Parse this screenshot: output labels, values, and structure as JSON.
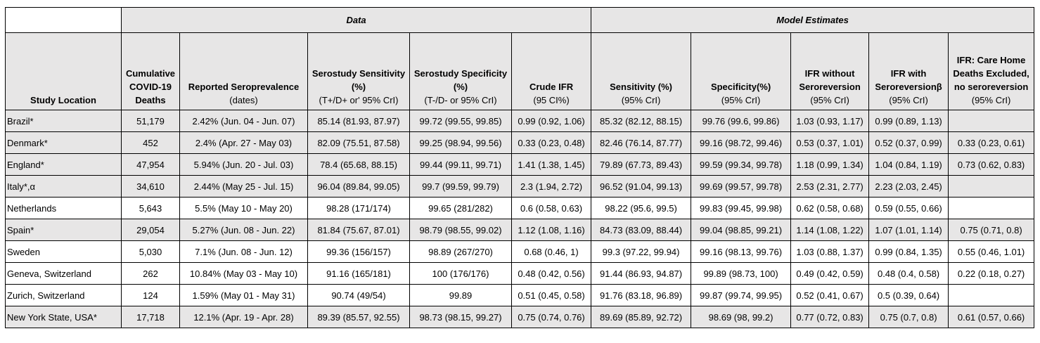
{
  "table": {
    "groups": [
      "Data",
      "Model Estimates"
    ],
    "columns": [
      {
        "bold": "Study Location",
        "normal": ""
      },
      {
        "bold": "Cumulative COVID-19 Deaths",
        "normal": ""
      },
      {
        "bold": "Reported Seroprevalence",
        "normal": "(dates)"
      },
      {
        "bold": "Serostudy Sensitivity (%)",
        "normal": "(T+/D+ or' 95% CrI)"
      },
      {
        "bold": "Serostudy Specificity (%)",
        "normal": "(T-/D- or 95% CrI)"
      },
      {
        "bold": "Crude IFR",
        "normal": "(95 CI%)"
      },
      {
        "bold": "Sensitivity (%)",
        "normal": "(95% CrI)"
      },
      {
        "bold": "Specificity(%)",
        "normal": "(95% CrI)"
      },
      {
        "bold": "IFR without Seroreversion",
        "normal": "(95% CrI)"
      },
      {
        "bold": "IFR with Seroreversionβ",
        "normal": "(95% CrI)"
      },
      {
        "bold": "IFR: Care Home Deaths Excluded, no seroreversion",
        "normal": "(95% CrI)"
      }
    ],
    "rows": [
      [
        "Brazil*",
        "51,179",
        "2.42% (Jun. 04 - Jun. 07)",
        "85.14 (81.93, 87.97)",
        "99.72 (99.55, 99.85)",
        "0.99 (0.92, 1.06)",
        "85.32 (82.12, 88.15)",
        "99.76 (99.6, 99.86)",
        "1.03 (0.93, 1.17)",
        "0.99 (0.89, 1.13)",
        ""
      ],
      [
        "Denmark*",
        "452",
        "2.4% (Apr. 27 - May 03)",
        "82.09 (75.51, 87.58)",
        "99.25 (98.94, 99.56)",
        "0.33 (0.23, 0.48)",
        "82.46 (76.14, 87.77)",
        "99.16 (98.72, 99.46)",
        "0.53 (0.37, 1.01)",
        "0.52 (0.37, 0.99)",
        "0.33 (0.23, 0.61)"
      ],
      [
        "England*",
        "47,954",
        "5.94% (Jun. 20 - Jul. 03)",
        "78.4 (65.68, 88.15)",
        "99.44 (99.11, 99.71)",
        "1.41 (1.38, 1.45)",
        "79.89 (67.73, 89.43)",
        "99.59 (99.34, 99.78)",
        "1.18 (0.99, 1.34)",
        "1.04 (0.84, 1.19)",
        "0.73 (0.62, 0.83)"
      ],
      [
        "Italy*,α",
        "34,610",
        "2.44% (May 25 - Jul. 15)",
        "96.04 (89.84, 99.05)",
        "99.7 (99.59, 99.79)",
        "2.3 (1.94, 2.72)",
        "96.52 (91.04, 99.13)",
        "99.69 (99.57, 99.78)",
        "2.53 (2.31, 2.77)",
        "2.23 (2.03, 2.45)",
        ""
      ],
      [
        "Netherlands",
        "5,643",
        "5.5% (May 10 - May 20)",
        "98.28 (171/174)",
        "99.65 (281/282)",
        "0.6 (0.58, 0.63)",
        "98.22 (95.6, 99.5)",
        "99.83 (99.45, 99.98)",
        "0.62 (0.58, 0.68)",
        "0.59 (0.55, 0.66)",
        ""
      ],
      [
        "Spain*",
        "29,054",
        "5.27% (Jun. 08 - Jun. 22)",
        "81.84 (75.67, 87.01)",
        "98.79 (98.55, 99.02)",
        "1.12 (1.08, 1.16)",
        "84.73 (83.09, 88.44)",
        "99.04 (98.85, 99.21)",
        "1.14 (1.08, 1.22)",
        "1.07 (1.01, 1.14)",
        "0.75 (0.71, 0.8)"
      ],
      [
        "Sweden",
        "5,030",
        "7.1% (Jun. 08 - Jun. 12)",
        "99.36 (156/157)",
        "98.89 (267/270)",
        "0.68 (0.46, 1)",
        "99.3 (97.22, 99.94)",
        "99.16 (98.13, 99.76)",
        "1.03 (0.88, 1.37)",
        "0.99 (0.84, 1.35)",
        "0.55 (0.46, 1.01)"
      ],
      [
        "Geneva, Switzerland",
        "262",
        "10.84% (May 03 - May 10)",
        "91.16 (165/181)",
        "100 (176/176)",
        "0.48 (0.42, 0.56)",
        "91.44 (86.93, 94.87)",
        "99.89 (98.73, 100)",
        "0.49 (0.42, 0.59)",
        "0.48 (0.4, 0.58)",
        "0.22 (0.18, 0.27)"
      ],
      [
        "Zurich, Switzerland",
        "124",
        "1.59% (May 01 - May 31)",
        "90.74 (49/54)",
        "99.89",
        "0.51 (0.45, 0.58)",
        "91.76 (83.18, 96.89)",
        "99.87 (99.74, 99.95)",
        "0.52 (0.41, 0.67)",
        "0.5 (0.39, 0.64)",
        ""
      ],
      [
        "New York State, USA*",
        "17,718",
        "12.1% (Apr. 19 - Apr. 28)",
        "89.39 (85.57, 92.55)",
        "98.73 (98.15, 99.27)",
        "0.75 (0.74, 0.76)",
        "89.69 (85.89, 92.72)",
        "98.69 (98, 99.2)",
        "0.77 (0.72, 0.83)",
        "0.75 (0.7, 0.8)",
        "0.61 (0.57, 0.66)"
      ]
    ]
  }
}
